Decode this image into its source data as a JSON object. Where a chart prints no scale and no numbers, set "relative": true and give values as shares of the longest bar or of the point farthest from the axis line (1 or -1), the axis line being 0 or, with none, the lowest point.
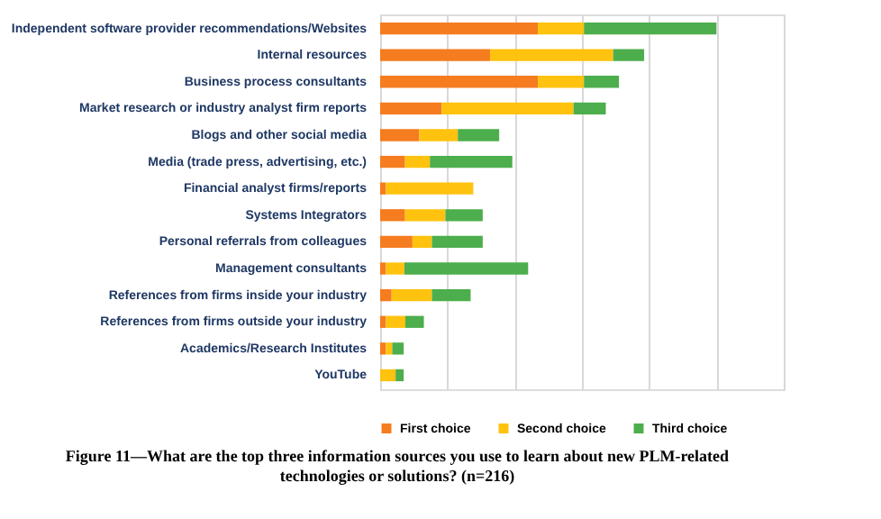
{
  "chart_data": {
    "type": "bar",
    "orientation": "horizontal",
    "stacked": true,
    "relative": true,
    "title": "Figure 11—What are the top three information sources you use to learn about new PLM-related technologies or solutions? (n=216)",
    "categories": [
      "Independent software provider recommendations/Websites",
      "Internal resources",
      "Business process consultants",
      "Market research or industry analyst  firm reports",
      "Blogs and other social media",
      "Media (trade press, advertising, etc.)",
      "Financial analyst firms/reports",
      "Systems Integrators",
      "Personal referrals from colleagues",
      "Management consultants",
      "References from firms inside your industry",
      "References from firms outside your industry",
      "Academics/Research Institutes",
      "YouTube"
    ],
    "series": [
      {
        "name": "First choice",
        "color": "#f57c1f",
        "values": [
          0.469,
          0.327,
          0.469,
          0.183,
          0.116,
          0.074,
          0.017,
          0.074,
          0.096,
          0.017,
          0.034,
          0.017,
          0.017,
          0
        ]
      },
      {
        "name": "Second choice",
        "color": "#ffc20e",
        "values": [
          0.137,
          0.366,
          0.137,
          0.392,
          0.115,
          0.074,
          0.26,
          0.12,
          0.058,
          0.055,
          0.12,
          0.058,
          0.019,
          0.046
        ]
      },
      {
        "name": "Third choice",
        "color": "#4cae4c",
        "values": [
          0.394,
          0.092,
          0.104,
          0.096,
          0.123,
          0.245,
          0,
          0.111,
          0.151,
          0.368,
          0.115,
          0.055,
          0.034,
          0.024
        ]
      }
    ],
    "grid": "x",
    "legend": "bottom",
    "tick_labels": "y"
  }
}
